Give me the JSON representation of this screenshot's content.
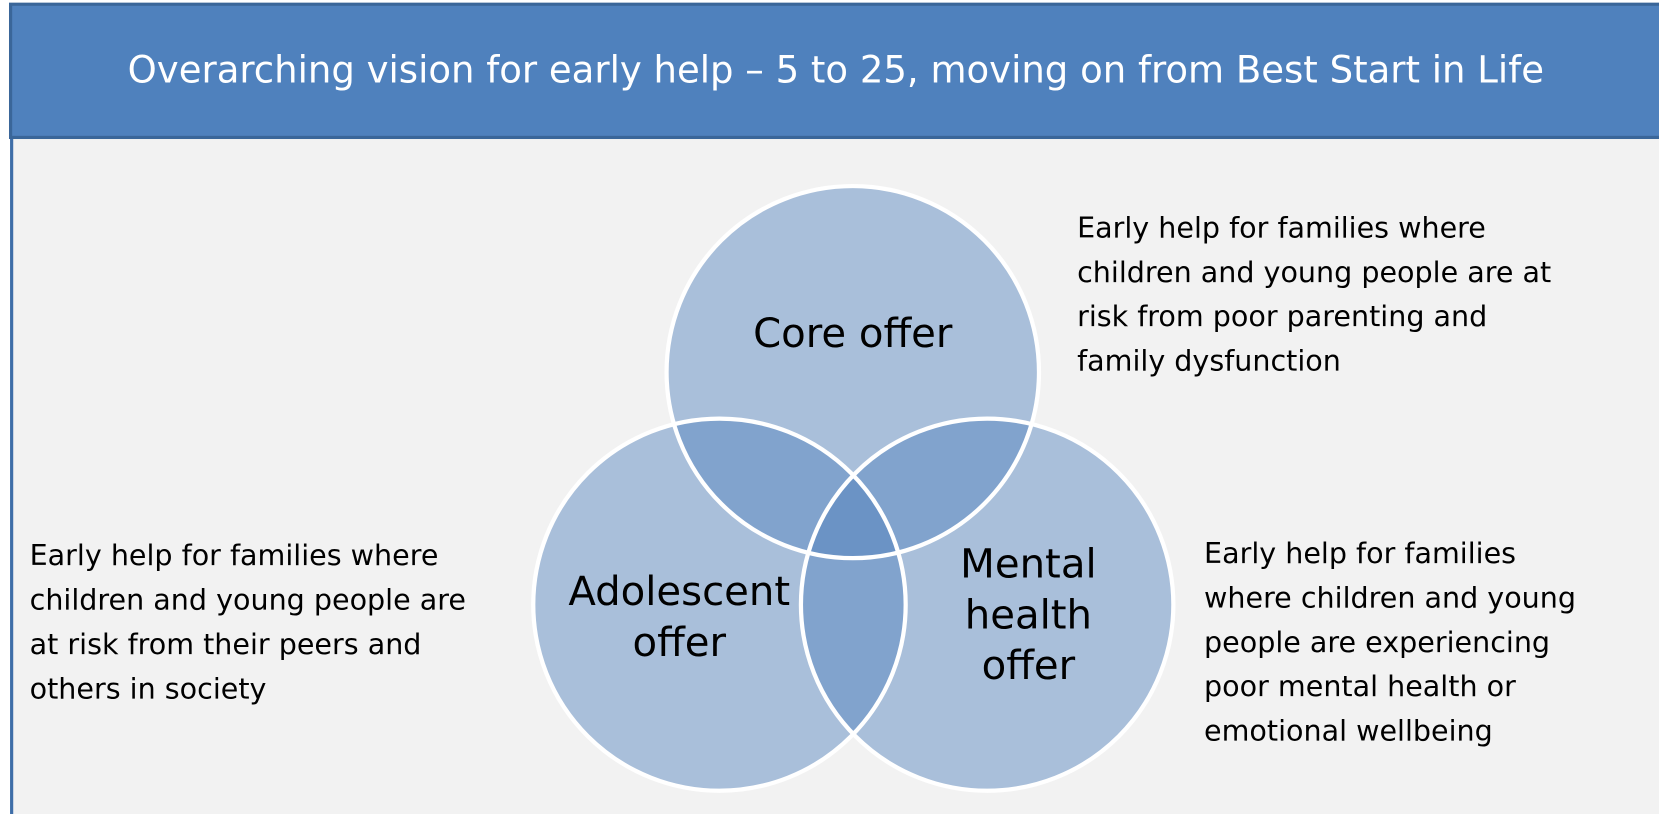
{
  "header": {
    "title": "Overarching vision for early help – 5 to 25, moving on from Best Start in Life"
  },
  "nodes": [
    {
      "label": [
        "Core offer"
      ],
      "description": [
        "Early help for families where",
        "children and young people are at",
        "risk from poor parenting and",
        "family dysfunction"
      ]
    },
    {
      "label": [
        "Adolescent",
        "offer"
      ],
      "description": [
        "Early help for families where",
        "children and young people are",
        "at risk from their peers and",
        "others in society"
      ]
    },
    {
      "label": [
        "Mental",
        "health",
        "offer"
      ],
      "description": [
        "Early help for families",
        "where children and young",
        "people are experiencing",
        "poor mental health or",
        "emotional wellbeing"
      ]
    }
  ]
}
